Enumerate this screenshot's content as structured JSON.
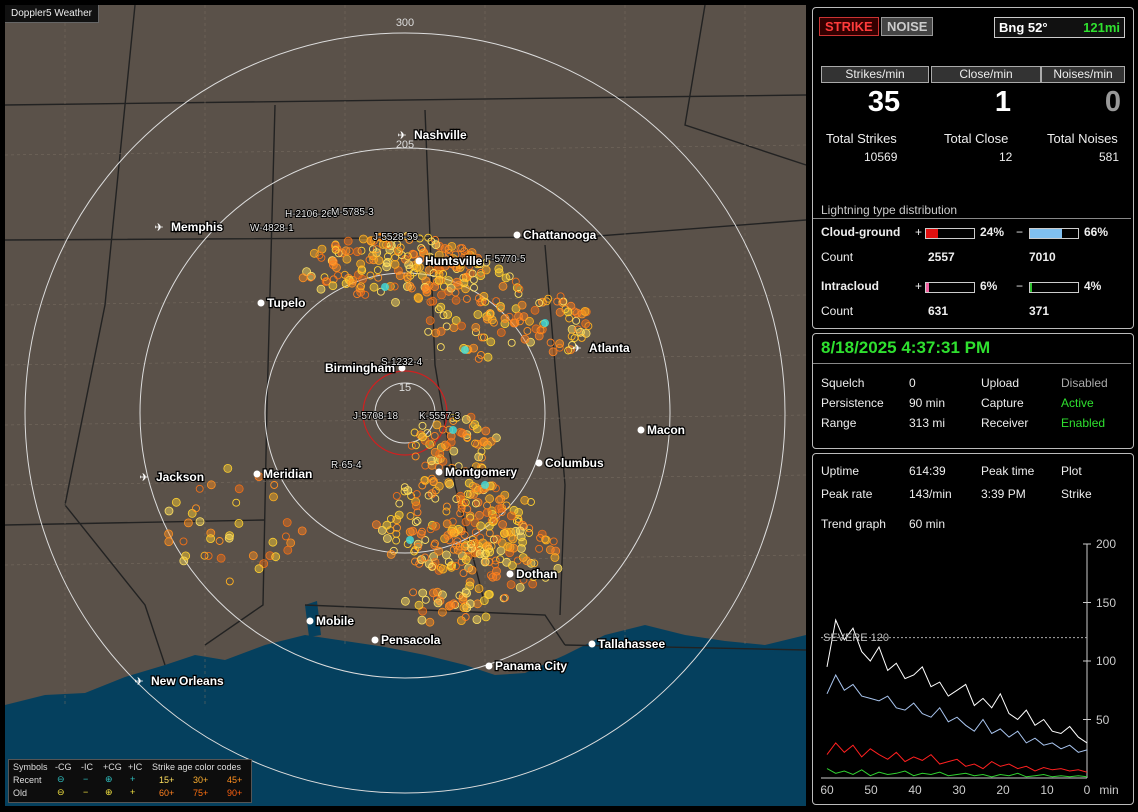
{
  "brand": "Doppler5 Weather",
  "map": {
    "range_labels": [
      "300",
      "205",
      "15"
    ],
    "cities": [
      {
        "name": "Nashville",
        "airport": true
      },
      {
        "name": "Memphis",
        "airport": true
      },
      {
        "name": "Chattanooga",
        "airport": false
      },
      {
        "name": "Huntsville",
        "airport": false
      },
      {
        "name": "Tupelo",
        "airport": false
      },
      {
        "name": "Atlanta",
        "airport": true
      },
      {
        "name": "Birmingham",
        "airport": false
      },
      {
        "name": "Macon",
        "airport": false
      },
      {
        "name": "Jackson",
        "airport": true
      },
      {
        "name": "Meridian",
        "airport": false
      },
      {
        "name": "Montgomery",
        "airport": false
      },
      {
        "name": "Columbus",
        "airport": false
      },
      {
        "name": "Dothan",
        "airport": false
      },
      {
        "name": "Mobile",
        "airport": false
      },
      {
        "name": "Pensacola",
        "airport": false
      },
      {
        "name": "Tallahassee",
        "airport": false
      },
      {
        "name": "Panama City",
        "airport": false
      },
      {
        "name": "New Orleans",
        "airport": true
      }
    ],
    "storm_tags": [
      "H-2106-266",
      "M-5785-3",
      "W-4828-1",
      "J-5528-59",
      "F-5770-5",
      "S-1232-4",
      "J-5708-18",
      "K-5557-3",
      "R-65-4"
    ]
  },
  "legend": {
    "row0": [
      "Symbols",
      "-CG",
      "-IC",
      "+CG",
      "+IC",
      "Strike age color codes"
    ],
    "recent_label": "Recent",
    "old_label": "Old",
    "recent_ages": [
      "15+",
      "30+",
      "45+"
    ],
    "old_ages": [
      "60+",
      "75+",
      "90+"
    ]
  },
  "stats": {
    "strike_tab": "STRIKE",
    "noise_tab": "NOISE",
    "bearing": "Bng 52°",
    "distance": "121mi",
    "headers": [
      "Strikes/min",
      "Close/min",
      "Noises/min"
    ],
    "rates": [
      "35",
      "1",
      "0"
    ],
    "total_labels": [
      "Total Strikes",
      "Total Close",
      "Total Noises"
    ],
    "totals": [
      "10569",
      "12",
      "581"
    ],
    "dist_title": "Lightning type distribution",
    "cg_label": "Cloud-ground",
    "ic_label": "Intracloud",
    "count_label": "Count",
    "plus": "+",
    "minus": "−",
    "cg_pos_pct": "24%",
    "cg_neg_pct": "66%",
    "cg_pos_count": "2557",
    "cg_neg_count": "7010",
    "ic_pos_pct": "6%",
    "ic_neg_pct": "4%",
    "ic_pos_count": "631",
    "ic_neg_count": "371",
    "cg_pos_frac": 0.24,
    "cg_neg_frac": 0.66,
    "ic_pos_frac": 0.06,
    "ic_neg_frac": 0.04
  },
  "status": {
    "datetime": "8/18/2025 4:37:31 PM",
    "squelch_label": "Squelch",
    "squelch": "0",
    "persistence_label": "Persistence",
    "persistence": "90 min",
    "range_label": "Range",
    "range": "313 mi",
    "upload_label": "Upload",
    "upload": "Disabled",
    "capture_label": "Capture",
    "capture": "Active",
    "receiver_label": "Receiver",
    "receiver": "Enabled"
  },
  "trend": {
    "uptime_label": "Uptime",
    "uptime": "614:39",
    "peak_time_label": "Peak time",
    "peak_time": "3:39 PM",
    "plot_label": "Plot",
    "plot": "Strike",
    "peak_rate_label": "Peak rate",
    "peak_rate": "143/min",
    "trend_label": "Trend graph",
    "trend_value": "60 min",
    "severe": "SEVERE 120",
    "y_ticks": [
      "200",
      "150",
      "100",
      "50"
    ],
    "x_ticks": [
      "60",
      "50",
      "40",
      "30",
      "20",
      "10",
      "0"
    ],
    "x_unit": "min"
  },
  "chart_data": {
    "type": "line",
    "xlabel": "min",
    "ylabel": "",
    "xlim": [
      60,
      0
    ],
    "ylim": [
      0,
      200
    ],
    "threshold": {
      "label": "SEVERE 120",
      "value": 120
    },
    "x": [
      60,
      58,
      56,
      54,
      52,
      50,
      48,
      46,
      44,
      42,
      40,
      38,
      36,
      34,
      32,
      30,
      28,
      26,
      24,
      22,
      20,
      18,
      16,
      14,
      12,
      10,
      8,
      6,
      4,
      2,
      0
    ],
    "series": [
      {
        "color": "#ffffff",
        "values": [
          95,
          135,
          118,
          128,
          108,
          100,
          112,
          92,
          98,
          85,
          88,
          95,
          78,
          82,
          70,
          75,
          80,
          62,
          68,
          60,
          72,
          55,
          50,
          58,
          45,
          50,
          40,
          38,
          44,
          35,
          30
        ]
      },
      {
        "color": "#a8c4ee",
        "values": [
          72,
          88,
          75,
          80,
          70,
          68,
          66,
          70,
          60,
          58,
          64,
          55,
          52,
          60,
          48,
          52,
          45,
          40,
          50,
          38,
          42,
          35,
          40,
          30,
          34,
          28,
          30,
          25,
          28,
          22,
          24
        ]
      },
      {
        "color": "#ff2020",
        "values": [
          20,
          30,
          22,
          28,
          18,
          25,
          20,
          16,
          22,
          14,
          18,
          15,
          20,
          12,
          14,
          16,
          10,
          12,
          8,
          14,
          10,
          12,
          8,
          10,
          6,
          9,
          7,
          8,
          6,
          7,
          5
        ]
      },
      {
        "color": "#30d030",
        "values": [
          8,
          4,
          6,
          3,
          7,
          2,
          5,
          3,
          4,
          6,
          2,
          4,
          3,
          5,
          2,
          3,
          4,
          2,
          3,
          1,
          3,
          2,
          4,
          1,
          2,
          3,
          1,
          2,
          1,
          2,
          1
        ]
      }
    ]
  }
}
